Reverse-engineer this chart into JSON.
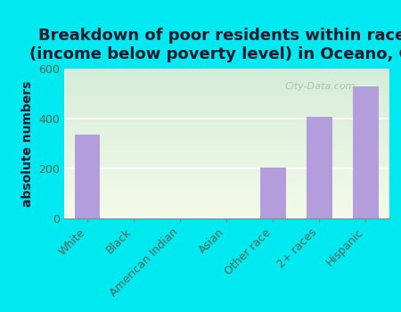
{
  "title": "Breakdown of poor residents within races\n(income below poverty level) in Oceano, CA",
  "categories": [
    "White",
    "Black",
    "American Indian",
    "Asian",
    "Other race",
    "2+ races",
    "Hispanic"
  ],
  "values": [
    335,
    0,
    0,
    0,
    205,
    408,
    530
  ],
  "bar_color": "#b39ddb",
  "ylabel": "absolute numbers",
  "ylim": [
    0,
    600
  ],
  "yticks": [
    0,
    200,
    400,
    600
  ],
  "background_color": "#00e8f0",
  "plot_bg_top": "#d4edda",
  "plot_bg_bottom": "#f5fae8",
  "title_fontsize": 13,
  "ylabel_fontsize": 10,
  "tick_fontsize": 9,
  "title_color": "#1a1a2e",
  "tick_color": "#556655",
  "watermark_text": "City-Data.com",
  "watermark_color": "#aabbaa"
}
